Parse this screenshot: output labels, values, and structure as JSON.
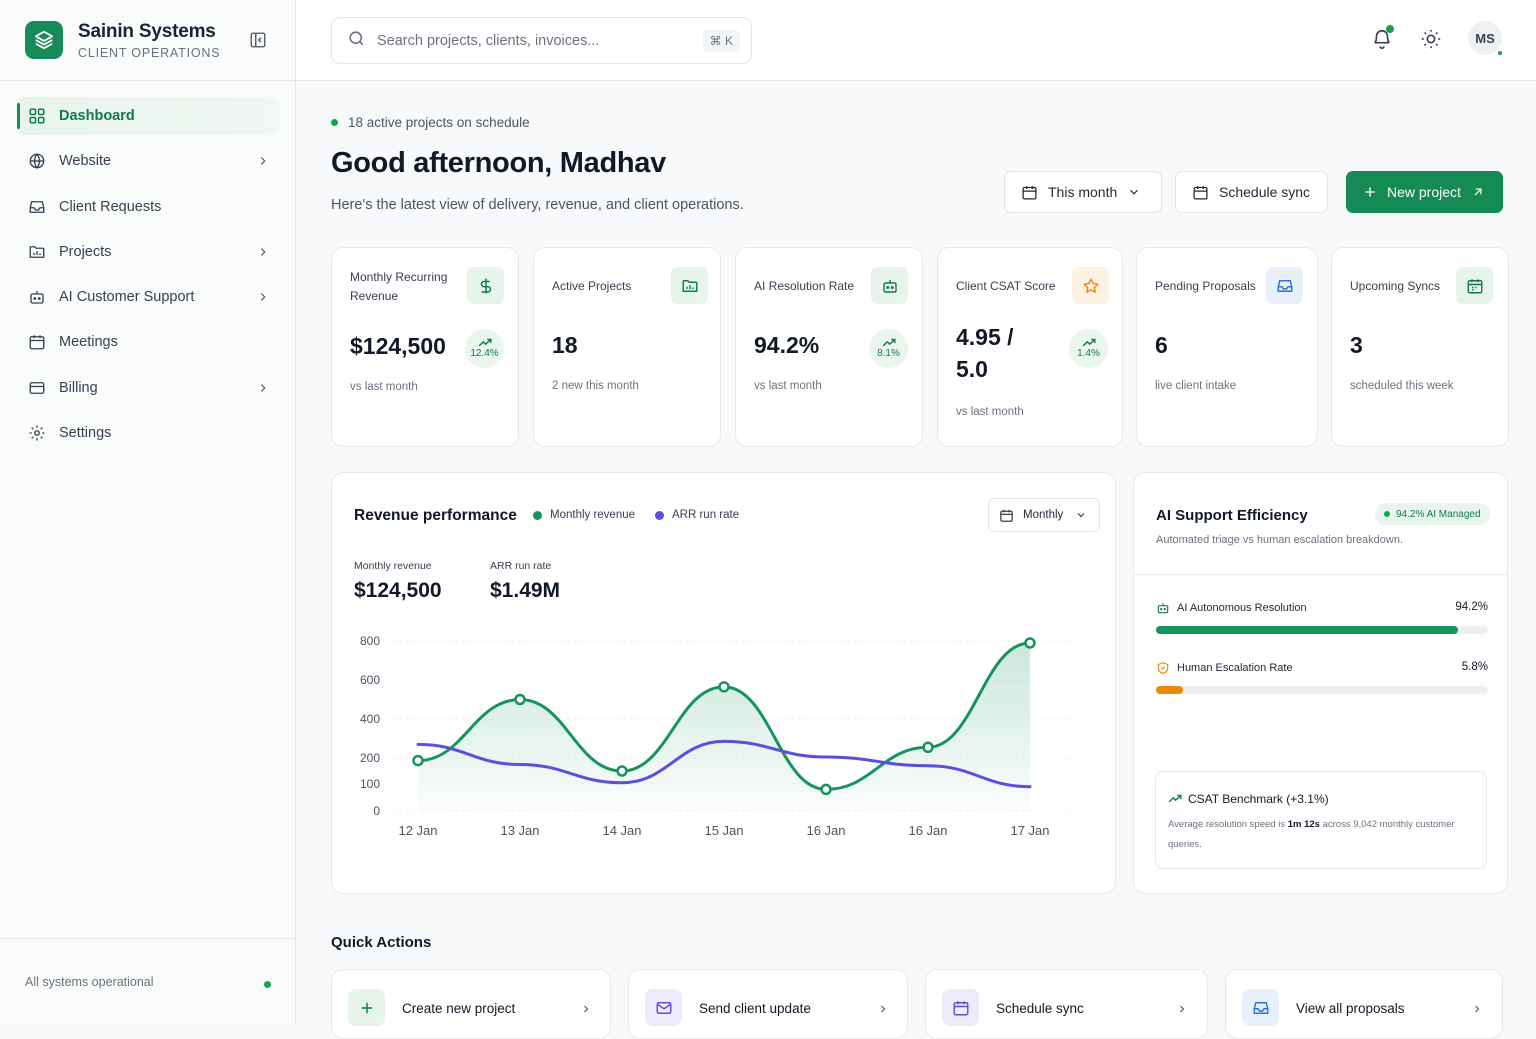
{
  "brand": {
    "name": "Sainin Systems",
    "subtitle": "CLIENT OPERATIONS"
  },
  "sidebar": {
    "items": [
      {
        "label": "Dashboard",
        "icon": "grid-icon",
        "active": true,
        "has_submenu": false
      },
      {
        "label": "Website",
        "icon": "globe-icon",
        "has_submenu": true
      },
      {
        "label": "Client Requests",
        "icon": "inbox-icon",
        "has_submenu": false
      },
      {
        "label": "Projects",
        "icon": "folder-chart-icon",
        "has_submenu": true
      },
      {
        "label": "AI Customer Support",
        "icon": "bot-icon",
        "has_submenu": true
      },
      {
        "label": "Meetings",
        "icon": "calendar-icon",
        "has_submenu": false
      },
      {
        "label": "Billing",
        "icon": "credit-card-icon",
        "has_submenu": true
      },
      {
        "label": "Settings",
        "icon": "gear-icon",
        "has_submenu": false
      }
    ],
    "footer_status": "All systems operational"
  },
  "topbar": {
    "search_placeholder": "Search projects, clients, invoices...",
    "shortcut": "⌘ K",
    "avatar_initials": "MS"
  },
  "header": {
    "status_line": "18 active projects on schedule",
    "greeting": "Good afternoon, Madhav",
    "subtitle": "Here's the latest view of delivery, revenue, and client operations.",
    "period_button": "This month",
    "sync_button": "Schedule sync",
    "new_project_button": "New project"
  },
  "kpis": [
    {
      "label": "Monthly Recurring Revenue",
      "value": "$124,500",
      "note": "vs last month",
      "trend": "12.4%",
      "icon": "dollar-icon"
    },
    {
      "label": "Active Projects",
      "value": "18",
      "note": "2 new this month",
      "icon": "folder-chart-icon"
    },
    {
      "label": "AI Resolution Rate",
      "value": "94.2%",
      "note": "vs last month",
      "trend": "8.1%",
      "icon": "bot-icon"
    },
    {
      "label": "Client CSAT Score",
      "value": "4.95 / 5.0",
      "note": "vs last month",
      "trend": "1.4%",
      "icon": "star-icon"
    },
    {
      "label": "Pending Proposals",
      "value": "6",
      "note": "live client intake",
      "icon": "inbox-icon"
    },
    {
      "label": "Upcoming Syncs",
      "value": "3",
      "note": "scheduled this week",
      "icon": "calendar-icon"
    }
  ],
  "revenue": {
    "title": "Revenue performance",
    "legend": [
      "Monthly revenue",
      "ARR run rate"
    ],
    "period": "Monthly",
    "metrics": [
      {
        "label": "Monthly revenue",
        "value": "$124,500"
      },
      {
        "label": "ARR run rate",
        "value": "$1.49M"
      }
    ]
  },
  "chart_data": {
    "type": "line",
    "title": "Revenue performance",
    "xlabel": "",
    "ylabel": "",
    "categories": [
      "12 Jan",
      "13 Jan",
      "14 Jan",
      "15 Jan",
      "16 Jan",
      "16 Jan",
      "17 Jan"
    ],
    "y_ticks": [
      0,
      100,
      200,
      400,
      600,
      800
    ],
    "ylim": [
      0,
      800
    ],
    "grid": true,
    "legend_position": "top",
    "series": [
      {
        "name": "Monthly revenue",
        "color": "#15945e",
        "values": [
          190,
          500,
          150,
          565,
          80,
          255,
          790
        ],
        "markers": true,
        "fill": true
      },
      {
        "name": "ARR run rate",
        "color": "#5b4fe0",
        "values": [
          270,
          175,
          105,
          285,
          205,
          170,
          90
        ],
        "markers": false,
        "fill": false
      }
    ]
  },
  "efficiency": {
    "title": "AI Support Efficiency",
    "badge": "94.2% AI Managed",
    "subtitle": "Automated triage vs human escalation breakdown.",
    "metrics": [
      {
        "label": "AI Autonomous Resolution",
        "value": "94.2%",
        "fraction": 0.91,
        "color": "#15945e",
        "icon": "bot-icon"
      },
      {
        "label": "Human Escalation Rate",
        "value": "5.8%",
        "fraction": 0.08,
        "color": "#ea8a0c",
        "icon": "shield-icon"
      }
    ],
    "benchmark": {
      "title": "CSAT Benchmark (+3.1%)",
      "text_pre": "Average resolution speed is ",
      "text_bold": "1m 12s",
      "text_post": " across 9,042 monthly customer queries."
    }
  },
  "quick_actions": {
    "title": "Quick Actions",
    "items": [
      {
        "label": "Create new project",
        "icon": "plus-icon"
      },
      {
        "label": "Send client update",
        "icon": "mail-icon"
      },
      {
        "label": "Schedule sync",
        "icon": "calendar-icon"
      },
      {
        "label": "View all proposals",
        "icon": "inbox-icon"
      }
    ]
  },
  "colors": {
    "brand": "#168a57",
    "accent_purple": "#5b4fe0",
    "warning": "#ea8a0c"
  }
}
